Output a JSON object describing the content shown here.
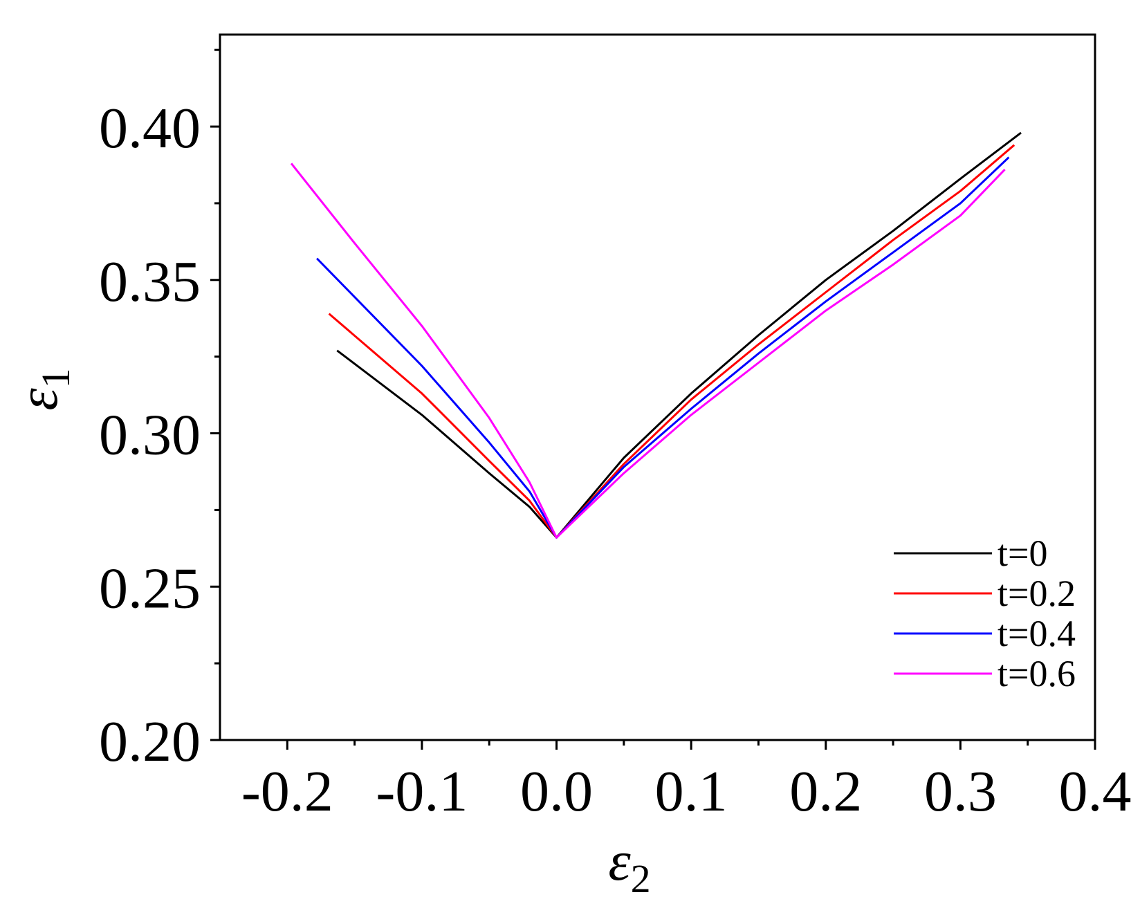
{
  "chart_data": {
    "type": "line",
    "title": "",
    "xlabel": "ε",
    "xlabel_sub": "2",
    "ylabel": "ε",
    "ylabel_sub": "1",
    "xlim": [
      -0.25,
      0.4
    ],
    "ylim": [
      0.2,
      0.43
    ],
    "xticks": [
      -0.2,
      -0.1,
      0.0,
      0.1,
      0.2,
      0.3,
      0.4
    ],
    "xtick_labels": [
      "-0.2",
      "-0.1",
      "0.0",
      "0.1",
      "0.2",
      "0.3",
      "0.4"
    ],
    "yticks": [
      0.2,
      0.25,
      0.3,
      0.35,
      0.4
    ],
    "ytick_labels": [
      "0.20",
      "0.25",
      "0.30",
      "0.35",
      "0.40"
    ],
    "grid": false,
    "legend_position": "bottom-right",
    "series": [
      {
        "name": "t=0",
        "color": "#000000",
        "points": [
          [
            -0.163,
            0.327
          ],
          [
            -0.1,
            0.306
          ],
          [
            -0.05,
            0.287
          ],
          [
            -0.02,
            0.276
          ],
          [
            0.0,
            0.266
          ],
          [
            0.05,
            0.292
          ],
          [
            0.1,
            0.313
          ],
          [
            0.15,
            0.332
          ],
          [
            0.2,
            0.35
          ],
          [
            0.25,
            0.366
          ],
          [
            0.3,
            0.383
          ],
          [
            0.345,
            0.398
          ]
        ]
      },
      {
        "name": "t=0.2",
        "color": "#ff0000",
        "points": [
          [
            -0.169,
            0.339
          ],
          [
            -0.1,
            0.313
          ],
          [
            -0.05,
            0.291
          ],
          [
            -0.02,
            0.278
          ],
          [
            0.0,
            0.266
          ],
          [
            0.05,
            0.29
          ],
          [
            0.1,
            0.311
          ],
          [
            0.15,
            0.329
          ],
          [
            0.2,
            0.346
          ],
          [
            0.25,
            0.363
          ],
          [
            0.3,
            0.379
          ],
          [
            0.34,
            0.394
          ]
        ]
      },
      {
        "name": "t=0.4",
        "color": "#0000ff",
        "points": [
          [
            -0.178,
            0.357
          ],
          [
            -0.1,
            0.322
          ],
          [
            -0.05,
            0.297
          ],
          [
            -0.02,
            0.281
          ],
          [
            0.0,
            0.266
          ],
          [
            0.05,
            0.289
          ],
          [
            0.1,
            0.308
          ],
          [
            0.15,
            0.326
          ],
          [
            0.2,
            0.343
          ],
          [
            0.25,
            0.359
          ],
          [
            0.3,
            0.375
          ],
          [
            0.336,
            0.39
          ]
        ]
      },
      {
        "name": "t=0.6",
        "color": "#ff00ff",
        "points": [
          [
            -0.197,
            0.388
          ],
          [
            -0.15,
            0.362
          ],
          [
            -0.1,
            0.335
          ],
          [
            -0.05,
            0.305
          ],
          [
            -0.02,
            0.284
          ],
          [
            0.0,
            0.266
          ],
          [
            0.05,
            0.287
          ],
          [
            0.1,
            0.306
          ],
          [
            0.15,
            0.323
          ],
          [
            0.2,
            0.34
          ],
          [
            0.25,
            0.355
          ],
          [
            0.3,
            0.371
          ],
          [
            0.333,
            0.386
          ]
        ]
      }
    ]
  }
}
